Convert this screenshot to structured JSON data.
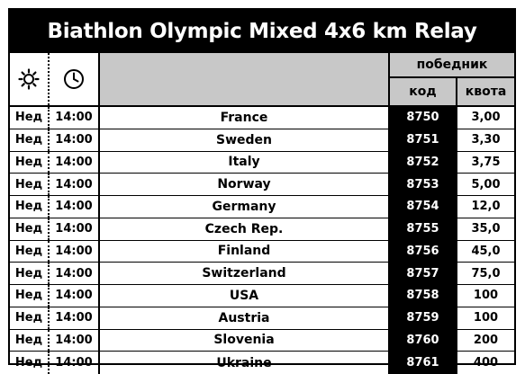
{
  "title": "Biathlon Olympic Mixed 4x6 km Relay",
  "header": {
    "day_icon": "sun-icon",
    "time_icon": "clock-icon",
    "winner_label": "победник",
    "code_label": "код",
    "odds_label": "квота"
  },
  "rows": [
    {
      "day": "Нед",
      "time": "14:00",
      "name": "France",
      "code": "8750",
      "odds": "3,00"
    },
    {
      "day": "Нед",
      "time": "14:00",
      "name": "Sweden",
      "code": "8751",
      "odds": "3,30"
    },
    {
      "day": "Нед",
      "time": "14:00",
      "name": "Italy",
      "code": "8752",
      "odds": "3,75"
    },
    {
      "day": "Нед",
      "time": "14:00",
      "name": "Norway",
      "code": "8753",
      "odds": "5,00"
    },
    {
      "day": "Нед",
      "time": "14:00",
      "name": "Germany",
      "code": "8754",
      "odds": "12,0"
    },
    {
      "day": "Нед",
      "time": "14:00",
      "name": "Czech Rep.",
      "code": "8755",
      "odds": "35,0"
    },
    {
      "day": "Нед",
      "time": "14:00",
      "name": "Finland",
      "code": "8756",
      "odds": "45,0"
    },
    {
      "day": "Нед",
      "time": "14:00",
      "name": "Switzerland",
      "code": "8757",
      "odds": "75,0"
    },
    {
      "day": "Нед",
      "time": "14:00",
      "name": "USA",
      "code": "8758",
      "odds": "100"
    },
    {
      "day": "Нед",
      "time": "14:00",
      "name": "Austria",
      "code": "8759",
      "odds": "100"
    },
    {
      "day": "Нед",
      "time": "14:00",
      "name": "Slovenia",
      "code": "8760",
      "odds": "200"
    },
    {
      "day": "Нед",
      "time": "14:00",
      "name": "Ukraine",
      "code": "8761",
      "odds": "400"
    }
  ]
}
